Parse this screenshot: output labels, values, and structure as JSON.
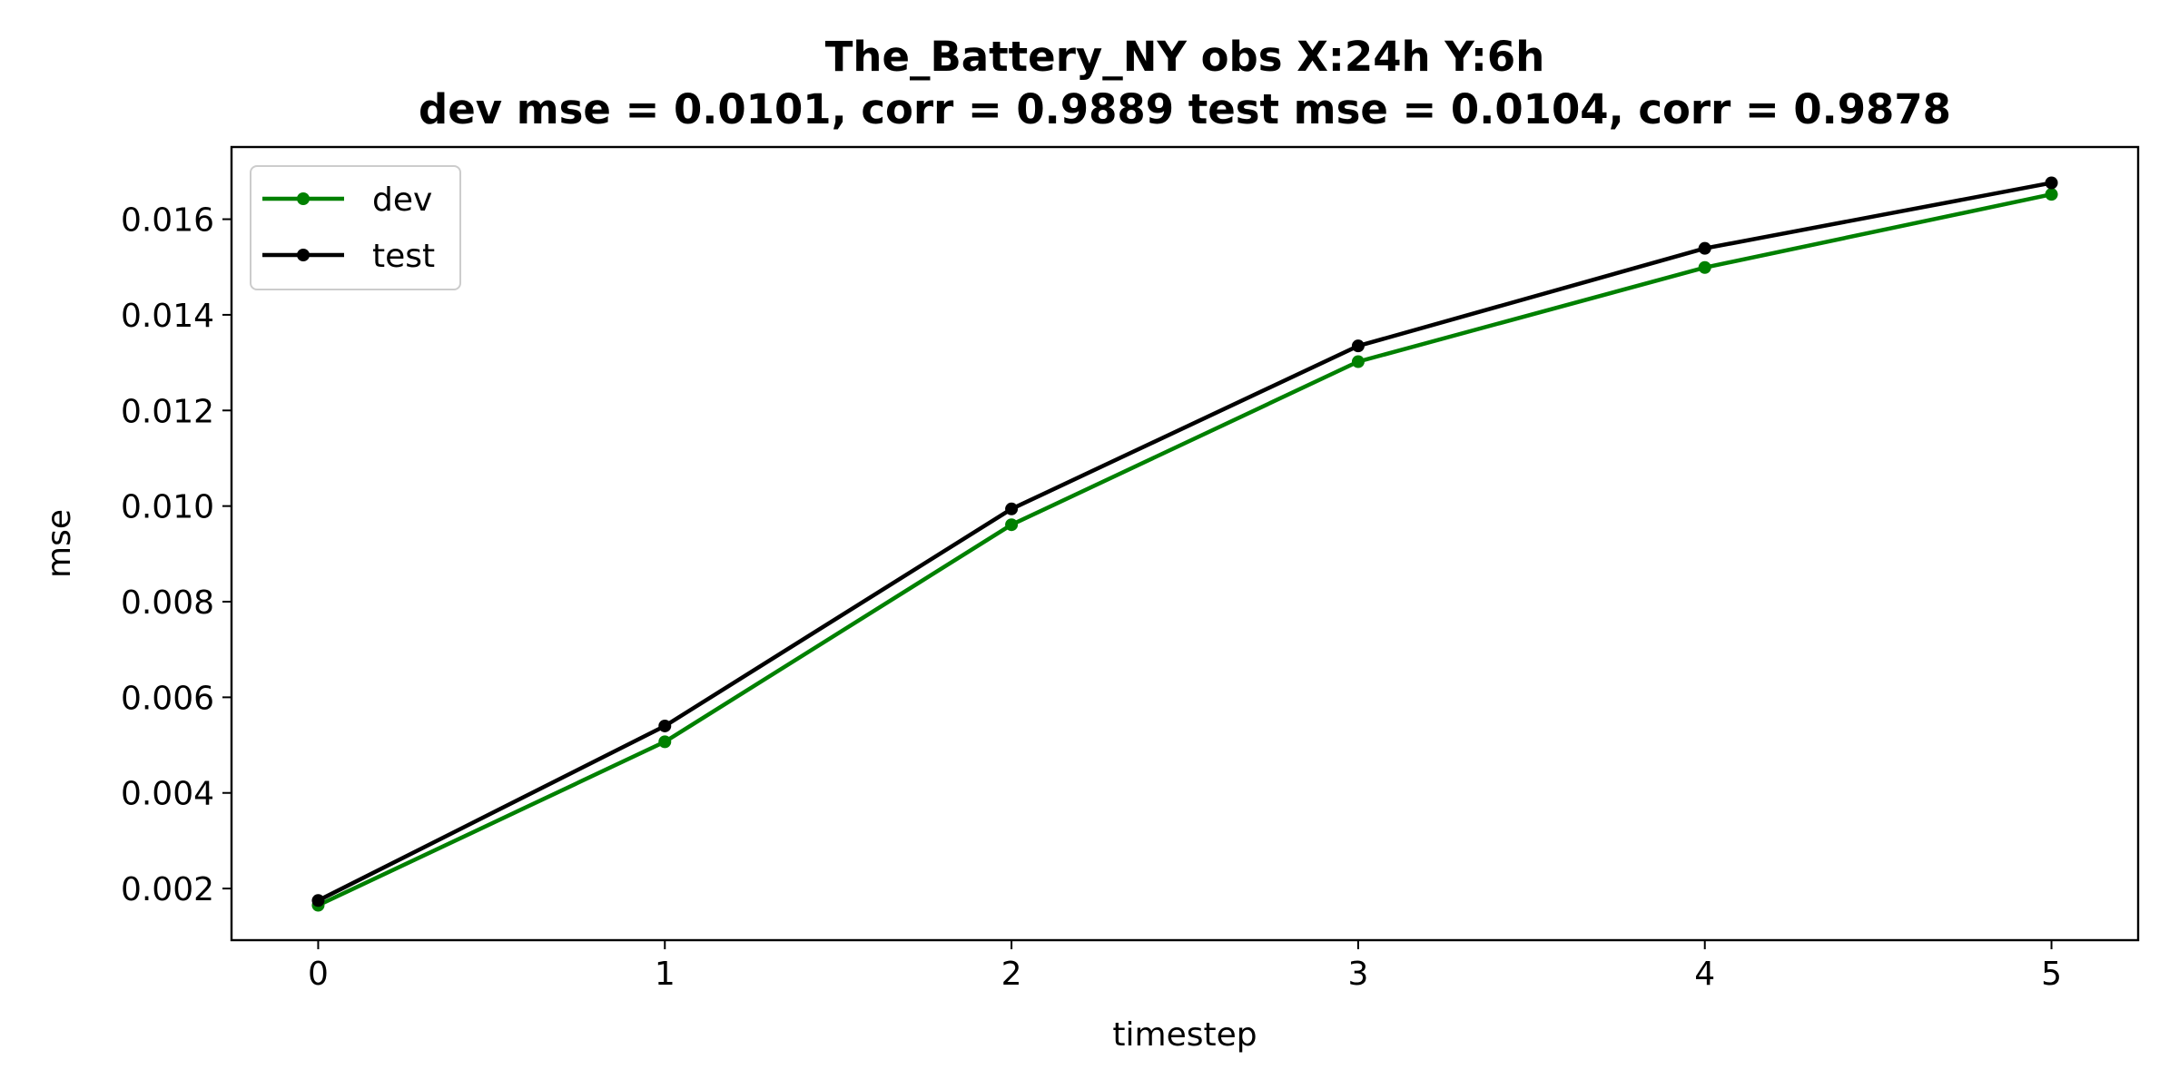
{
  "chart_data": {
    "type": "line",
    "title": "The_Battery_NY   obs   X:24h   Y:6h",
    "subtitle": "dev mse = 0.0101, corr = 0.9889   test mse = 0.0104, corr = 0.9878",
    "xlabel": "timestep",
    "ylabel": "mse",
    "x": [
      0,
      1,
      2,
      3,
      4,
      5
    ],
    "xlim": [
      -0.25,
      5.25
    ],
    "ylim": [
      0.00092,
      0.01751
    ],
    "xticks": [
      "0",
      "1",
      "2",
      "3",
      "4",
      "5"
    ],
    "yticks": [
      "0.002",
      "0.004",
      "0.006",
      "0.008",
      "0.010",
      "0.012",
      "0.014",
      "0.016"
    ],
    "ytick_values": [
      0.002,
      0.004,
      0.006,
      0.008,
      0.01,
      0.012,
      0.014,
      0.016
    ],
    "grid": false,
    "legend_position": "upper-left",
    "series": [
      {
        "name": "dev",
        "color": "#008000",
        "marker": "circle",
        "values": [
          0.00165,
          0.00507,
          0.00961,
          0.01302,
          0.01499,
          0.01652
        ]
      },
      {
        "name": "test",
        "color": "#000000",
        "marker": "circle",
        "values": [
          0.00175,
          0.0054,
          0.00994,
          0.01335,
          0.01539,
          0.01676
        ]
      }
    ]
  }
}
